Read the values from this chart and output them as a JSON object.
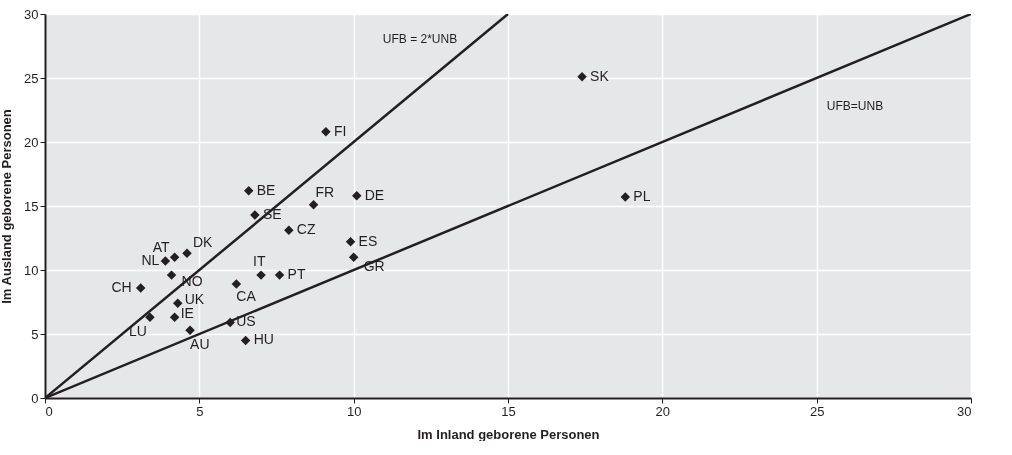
{
  "chart_data": {
    "type": "scatter",
    "xlabel": "Im Inland geborene Personen",
    "ylabel": "Im Ausland geborene Personen",
    "xlim": [
      0,
      30
    ],
    "ylim": [
      0,
      30
    ],
    "xticks": [
      0,
      5,
      10,
      15,
      20,
      25,
      30
    ],
    "yticks": [
      0,
      5,
      10,
      15,
      20,
      25,
      30
    ],
    "grid": true,
    "marker": "diamond",
    "series": [
      {
        "name": "SK",
        "color": "#231f20",
        "x": [
          17.4
        ],
        "values": [
          25.1
        ]
      },
      {
        "name": "PL",
        "color": "#231f20",
        "x": [
          18.8
        ],
        "values": [
          15.7
        ]
      },
      {
        "name": "FI",
        "color": "#231f20",
        "x": [
          9.1
        ],
        "values": [
          20.8
        ]
      },
      {
        "name": "BE",
        "color": "#231f20",
        "x": [
          6.6
        ],
        "values": [
          16.2
        ]
      },
      {
        "name": "FR",
        "color": "#231f20",
        "x": [
          8.7
        ],
        "values": [
          15.1
        ]
      },
      {
        "name": "DE",
        "color": "#231f20",
        "x": [
          10.1
        ],
        "values": [
          15.8
        ]
      },
      {
        "name": "SE",
        "color": "#231f20",
        "x": [
          6.8
        ],
        "values": [
          14.3
        ]
      },
      {
        "name": "CZ",
        "color": "#231f20",
        "x": [
          7.9
        ],
        "values": [
          13.1
        ]
      },
      {
        "name": "ES",
        "color": "#231f20",
        "x": [
          9.9
        ],
        "values": [
          12.2
        ]
      },
      {
        "name": "GR",
        "color": "#231f20",
        "x": [
          10.0
        ],
        "values": [
          11.0
        ]
      },
      {
        "name": "AT",
        "color": "#231f20",
        "x": [
          4.2
        ],
        "values": [
          11.0
        ]
      },
      {
        "name": "DK",
        "color": "#231f20",
        "x": [
          4.6
        ],
        "values": [
          11.3
        ]
      },
      {
        "name": "NL",
        "color": "#231f20",
        "x": [
          3.9
        ],
        "values": [
          10.7
        ]
      },
      {
        "name": "NO",
        "color": "#231f20",
        "x": [
          4.1
        ],
        "values": [
          9.6
        ]
      },
      {
        "name": "IT",
        "color": "#231f20",
        "x": [
          7.0
        ],
        "values": [
          9.6
        ]
      },
      {
        "name": "PT",
        "color": "#231f20",
        "x": [
          7.6
        ],
        "values": [
          9.6
        ]
      },
      {
        "name": "CA",
        "color": "#231f20",
        "x": [
          6.2
        ],
        "values": [
          8.9
        ]
      },
      {
        "name": "CH",
        "color": "#231f20",
        "x": [
          3.1
        ],
        "values": [
          8.6
        ]
      },
      {
        "name": "UK",
        "color": "#231f20",
        "x": [
          4.3
        ],
        "values": [
          7.4
        ]
      },
      {
        "name": "IE",
        "color": "#231f20",
        "x": [
          4.2
        ],
        "values": [
          6.3
        ]
      },
      {
        "name": "LU",
        "color": "#231f20",
        "x": [
          3.4
        ],
        "values": [
          6.3
        ]
      },
      {
        "name": "US",
        "color": "#231f20",
        "x": [
          6.0
        ],
        "values": [
          5.9
        ]
      },
      {
        "name": "AU",
        "color": "#231f20",
        "x": [
          4.7
        ],
        "values": [
          5.3
        ]
      },
      {
        "name": "HU",
        "color": "#231f20",
        "x": [
          6.5
        ],
        "values": [
          4.5
        ]
      },
      {
        "type": "line",
        "marker": "none",
        "color": "#231f20",
        "x": [
          0,
          30
        ],
        "values": [
          0,
          30
        ]
      },
      {
        "type": "line",
        "marker": "none",
        "color": "#231f20",
        "x": [
          0,
          15
        ],
        "values": [
          0,
          30
        ]
      }
    ],
    "annotations": [
      "UFB = 2*UNB",
      "UFB=UNB"
    ]
  }
}
